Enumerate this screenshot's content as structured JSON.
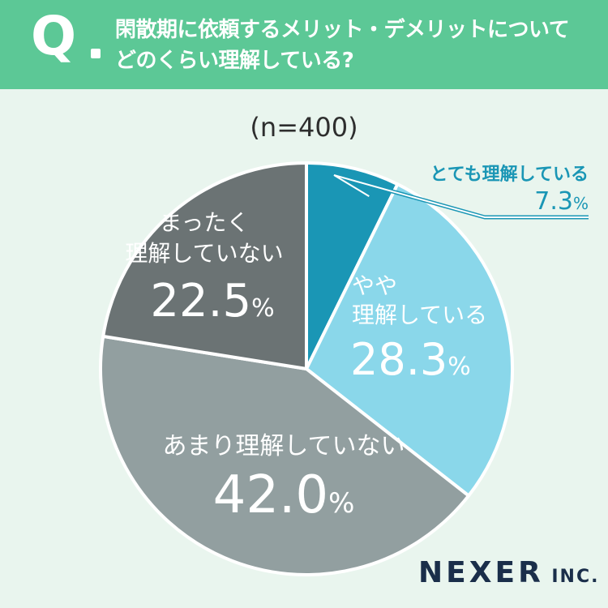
{
  "header": {
    "q_label": "Q",
    "question_line1": "閑散期に依頼するメリット・デメリットについて",
    "question_line2": "どのくらい理解している?"
  },
  "sample_size": "(n=400)",
  "colors": {
    "header_bg": "#5cc896",
    "page_bg": "#e9f5ee"
  },
  "chart_data": {
    "type": "pie",
    "start_angle_deg": 0,
    "direction": "clockwise",
    "slices": [
      {
        "label": "とても理解している",
        "value": 7.3,
        "value_text": "7.3",
        "unit": "%",
        "color": "#1a96b5"
      },
      {
        "label": "やや理解している",
        "value": 28.3,
        "value_text": "28.3",
        "unit": "%",
        "color": "#8ad7ea"
      },
      {
        "label": "あまり理解していない",
        "value": 42.0,
        "value_text": "42.0",
        "unit": "%",
        "color": "#929fa0"
      },
      {
        "label": "まったく理解していない",
        "value": 22.5,
        "value_text": "22.5",
        "unit": "%",
        "color": "#6b7374"
      }
    ]
  },
  "logo": {
    "main": "NEXER",
    "sub": "INC."
  }
}
